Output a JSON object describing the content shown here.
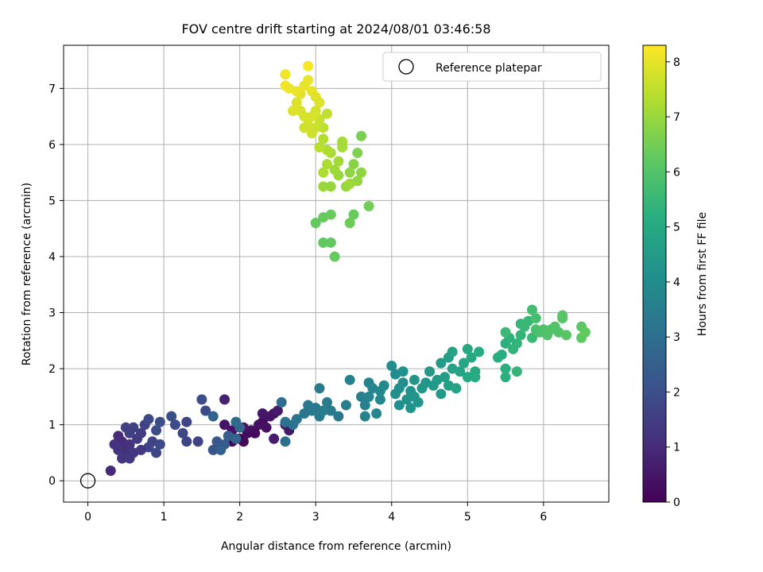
{
  "chart_data": {
    "type": "scatter",
    "title": "FOV centre drift starting at 2024/08/01 03:46:58",
    "xlabel": "Angular distance from reference (arcmin)",
    "ylabel": "Rotation from reference (arcmin)",
    "xlim": [
      -0.32,
      6.86
    ],
    "ylim": [
      -0.38,
      7.77
    ],
    "x_ticks": [
      0,
      1,
      2,
      3,
      4,
      5,
      6
    ],
    "y_ticks": [
      0,
      1,
      2,
      3,
      4,
      5,
      6,
      7
    ],
    "grid": true,
    "legend": {
      "placement": "top-right",
      "label": "Reference platepar"
    },
    "reference_point": {
      "x": 0,
      "y": 0
    },
    "colorbar": {
      "label": "Hours from first FF file",
      "colormap": "viridis",
      "range": [
        0,
        8.3
      ],
      "ticks": [
        0,
        1,
        2,
        3,
        4,
        5,
        6,
        7,
        8
      ]
    },
    "series": [
      {
        "note_hours": "0-1",
        "points": [
          [
            1.9,
            0.7
          ],
          [
            1.85,
            0.8
          ],
          [
            2.0,
            0.75
          ],
          [
            2.05,
            0.7
          ],
          [
            2.1,
            0.85
          ],
          [
            2.15,
            0.9
          ],
          [
            1.9,
            0.9
          ],
          [
            2.05,
            0.95
          ],
          [
            2.3,
            1.05
          ],
          [
            2.35,
            0.95
          ],
          [
            2.4,
            1.15
          ],
          [
            2.45,
            1.2
          ],
          [
            2.3,
            1.2
          ],
          [
            2.5,
            1.25
          ],
          [
            2.6,
            1.0
          ],
          [
            2.65,
            0.9
          ],
          [
            2.45,
            0.75
          ],
          [
            2.2,
            0.85
          ],
          [
            1.8,
            1.0
          ],
          [
            2.25,
            1.0
          ],
          [
            1.8,
            1.45
          ]
        ],
        "hours": [
          0.1,
          0.15,
          0.2,
          0.2,
          0.3,
          0.35,
          0.4,
          0.45,
          0.3,
          0.4,
          0.5,
          0.45,
          0.55,
          0.6,
          0.7,
          0.6,
          0.65,
          0.25,
          0.5,
          0.4,
          0.8
        ]
      },
      {
        "note_hours": "1-2",
        "points": [
          [
            0.3,
            0.18
          ],
          [
            0.4,
            0.8
          ],
          [
            0.45,
            0.7
          ],
          [
            0.5,
            0.55
          ],
          [
            0.55,
            0.65
          ],
          [
            0.35,
            0.65
          ],
          [
            0.45,
            0.4
          ],
          [
            0.55,
            0.4
          ],
          [
            0.6,
            0.5
          ],
          [
            0.65,
            0.75
          ],
          [
            0.7,
            0.85
          ],
          [
            0.5,
            0.95
          ],
          [
            0.6,
            0.95
          ],
          [
            0.75,
            1.0
          ],
          [
            0.85,
            0.7
          ],
          [
            0.8,
            0.6
          ],
          [
            0.9,
            0.5
          ],
          [
            0.95,
            0.65
          ],
          [
            0.9,
            0.9
          ],
          [
            0.95,
            1.05
          ],
          [
            1.1,
            1.15
          ],
          [
            1.15,
            1.0
          ],
          [
            1.25,
            0.85
          ],
          [
            1.3,
            1.05
          ],
          [
            1.3,
            0.7
          ],
          [
            1.45,
            0.7
          ],
          [
            1.55,
            1.25
          ],
          [
            1.5,
            1.45
          ],
          [
            0.4,
            0.55
          ],
          [
            0.55,
            0.85
          ],
          [
            0.7,
            0.55
          ],
          [
            0.8,
            1.1
          ]
        ],
        "hours": [
          1.0,
          1.05,
          1.1,
          1.15,
          1.2,
          1.25,
          1.3,
          1.35,
          1.4,
          1.45,
          1.5,
          1.55,
          1.6,
          1.65,
          1.7,
          1.75,
          1.8,
          1.85,
          1.9,
          1.95,
          2.0,
          1.9,
          1.8,
          1.75,
          1.7,
          1.65,
          1.9,
          1.95,
          1.3,
          1.6,
          1.4,
          1.85
        ]
      },
      {
        "note_hours": "2-3.5",
        "points": [
          [
            1.65,
            0.55
          ],
          [
            1.7,
            0.7
          ],
          [
            1.8,
            0.65
          ],
          [
            1.85,
            0.8
          ],
          [
            1.75,
            0.55
          ],
          [
            1.95,
            0.75
          ],
          [
            2.0,
            0.95
          ],
          [
            1.95,
            1.05
          ],
          [
            1.65,
            1.15
          ],
          [
            2.55,
            1.4
          ],
          [
            2.6,
            0.7
          ],
          [
            2.6,
            1.05
          ],
          [
            2.7,
            1.0
          ],
          [
            2.75,
            1.1
          ],
          [
            2.85,
            1.2
          ],
          [
            2.9,
            1.35
          ],
          [
            2.95,
            1.25
          ],
          [
            3.0,
            1.3
          ],
          [
            3.05,
            1.15
          ],
          [
            3.1,
            1.25
          ],
          [
            3.15,
            1.4
          ],
          [
            3.2,
            1.25
          ],
          [
            3.3,
            1.15
          ],
          [
            3.4,
            1.35
          ],
          [
            3.05,
            1.65
          ],
          [
            3.45,
            1.8
          ],
          [
            3.6,
            1.5
          ],
          [
            3.65,
            1.35
          ],
          [
            3.65,
            1.15
          ]
        ],
        "hours": [
          2.2,
          2.3,
          2.4,
          2.5,
          2.6,
          2.7,
          2.8,
          2.9,
          2.7,
          3.0,
          3.05,
          3.1,
          3.15,
          3.2,
          3.25,
          3.3,
          3.35,
          3.4,
          3.45,
          3.5,
          3.45,
          3.4,
          3.35,
          3.5,
          3.4,
          3.6,
          3.55,
          3.6,
          3.65
        ]
      },
      {
        "note_hours": "3.5-4.5",
        "points": [
          [
            3.7,
            1.75
          ],
          [
            3.7,
            1.5
          ],
          [
            3.75,
            1.65
          ],
          [
            3.8,
            1.2
          ],
          [
            3.85,
            1.45
          ],
          [
            3.85,
            1.6
          ],
          [
            3.9,
            1.7
          ],
          [
            4.0,
            2.05
          ],
          [
            4.05,
            1.9
          ],
          [
            4.05,
            1.55
          ],
          [
            4.1,
            1.65
          ],
          [
            4.1,
            1.35
          ],
          [
            4.15,
            1.75
          ],
          [
            4.15,
            1.95
          ],
          [
            4.2,
            1.45
          ],
          [
            4.25,
            1.6
          ],
          [
            4.25,
            1.3
          ],
          [
            4.3,
            1.8
          ],
          [
            4.3,
            1.5
          ],
          [
            4.35,
            1.4
          ],
          [
            4.4,
            1.65
          ],
          [
            4.45,
            1.75
          ],
          [
            4.5,
            1.95
          ],
          [
            4.55,
            1.7
          ],
          [
            4.6,
            1.8
          ],
          [
            4.65,
            1.55
          ],
          [
            4.65,
            2.1
          ]
        ],
        "hours": [
          3.7,
          3.75,
          3.8,
          3.8,
          3.85,
          3.9,
          3.95,
          4.0,
          4.05,
          4.1,
          4.1,
          4.15,
          4.15,
          4.2,
          4.25,
          4.25,
          4.3,
          4.3,
          4.35,
          4.35,
          4.4,
          4.4,
          4.45,
          4.45,
          4.5,
          4.5,
          4.55
        ]
      },
      {
        "note_hours": "4.5-5.8",
        "points": [
          [
            4.7,
            1.85
          ],
          [
            4.75,
            2.2
          ],
          [
            4.75,
            1.7
          ],
          [
            4.8,
            2.0
          ],
          [
            4.8,
            2.3
          ],
          [
            4.85,
            1.65
          ],
          [
            4.9,
            1.95
          ],
          [
            4.95,
            2.1
          ],
          [
            5.0,
            1.85
          ],
          [
            5.0,
            2.35
          ],
          [
            5.05,
            2.2
          ],
          [
            5.1,
            1.95
          ],
          [
            5.15,
            2.3
          ],
          [
            5.1,
            1.85
          ],
          [
            5.45,
            2.25
          ],
          [
            5.5,
            2.0
          ],
          [
            5.5,
            1.85
          ],
          [
            5.5,
            2.45
          ],
          [
            5.55,
            2.55
          ],
          [
            5.6,
            2.35
          ],
          [
            5.65,
            2.45
          ],
          [
            5.65,
            1.95
          ],
          [
            5.7,
            2.6
          ],
          [
            5.7,
            2.8
          ],
          [
            5.75,
            2.75
          ],
          [
            5.8,
            2.85
          ],
          [
            5.85,
            2.55
          ],
          [
            5.5,
            2.65
          ],
          [
            5.4,
            2.2
          ]
        ],
        "hours": [
          4.6,
          4.65,
          4.7,
          4.75,
          4.8,
          4.85,
          4.9,
          4.95,
          5.0,
          5.0,
          5.05,
          5.05,
          5.1,
          5.1,
          5.2,
          5.25,
          5.3,
          5.3,
          5.35,
          5.4,
          5.4,
          5.45,
          5.45,
          5.5,
          5.55,
          5.55,
          5.6,
          5.6,
          5.2
        ]
      },
      {
        "note_hours": "5.8-6.5",
        "points": [
          [
            5.85,
            3.05
          ],
          [
            5.9,
            2.9
          ],
          [
            5.9,
            2.7
          ],
          [
            5.95,
            2.65
          ],
          [
            6.0,
            2.7
          ],
          [
            6.05,
            2.6
          ],
          [
            6.1,
            2.7
          ],
          [
            6.15,
            2.75
          ],
          [
            6.2,
            2.65
          ],
          [
            6.25,
            2.9
          ],
          [
            6.25,
            2.95
          ],
          [
            6.3,
            2.6
          ],
          [
            6.5,
            2.75
          ],
          [
            6.5,
            2.55
          ],
          [
            6.55,
            2.65
          ],
          [
            3.1,
            4.25
          ],
          [
            3.2,
            4.25
          ],
          [
            3.25,
            4.0
          ],
          [
            3.0,
            4.6
          ],
          [
            3.1,
            4.7
          ],
          [
            3.2,
            4.75
          ],
          [
            3.45,
            4.6
          ],
          [
            3.5,
            4.75
          ],
          [
            3.7,
            4.9
          ]
        ],
        "hours": [
          5.75,
          5.8,
          5.85,
          5.9,
          5.95,
          6.0,
          6.0,
          6.05,
          6.05,
          6.1,
          6.1,
          6.15,
          6.2,
          6.25,
          6.3,
          6.25,
          6.3,
          6.35,
          6.3,
          6.35,
          6.4,
          6.45,
          6.4,
          6.5
        ]
      },
      {
        "note_hours": "6.5-8.3",
        "points": [
          [
            3.6,
            6.15
          ],
          [
            3.55,
            5.85
          ],
          [
            3.5,
            5.65
          ],
          [
            3.45,
            5.5
          ],
          [
            3.55,
            5.35
          ],
          [
            3.4,
            5.25
          ],
          [
            3.3,
            5.45
          ],
          [
            3.25,
            5.55
          ],
          [
            3.3,
            5.7
          ],
          [
            3.35,
            5.95
          ],
          [
            3.2,
            5.85
          ],
          [
            3.15,
            5.65
          ],
          [
            3.1,
            5.5
          ],
          [
            3.15,
            5.9
          ],
          [
            3.1,
            6.1
          ],
          [
            3.05,
            5.95
          ],
          [
            3.1,
            5.25
          ],
          [
            3.35,
            6.05
          ],
          [
            3.45,
            5.3
          ],
          [
            3.6,
            5.5
          ],
          [
            3.2,
            5.25
          ],
          [
            3.1,
            6.3
          ],
          [
            3.15,
            6.55
          ],
          [
            3.05,
            6.45
          ],
          [
            3.0,
            6.3
          ],
          [
            2.95,
            6.2
          ],
          [
            2.9,
            6.35
          ],
          [
            2.85,
            6.5
          ],
          [
            2.8,
            6.6
          ],
          [
            2.75,
            6.75
          ],
          [
            2.7,
            6.6
          ],
          [
            2.8,
            6.9
          ],
          [
            2.85,
            7.05
          ],
          [
            2.9,
            7.15
          ],
          [
            2.95,
            6.95
          ],
          [
            3.0,
            6.85
          ],
          [
            3.05,
            6.75
          ],
          [
            2.6,
            7.25
          ],
          [
            2.6,
            7.05
          ],
          [
            2.65,
            7.0
          ],
          [
            2.9,
            7.4
          ],
          [
            2.75,
            6.95
          ],
          [
            2.85,
            6.3
          ],
          [
            3.0,
            6.6
          ],
          [
            2.95,
            6.5
          ]
        ],
        "hours": [
          6.6,
          6.7,
          6.8,
          6.9,
          6.95,
          7.0,
          7.05,
          7.1,
          7.15,
          7.2,
          7.25,
          7.3,
          7.3,
          7.35,
          7.4,
          7.45,
          7.05,
          7.2,
          7.1,
          6.9,
          7.0,
          7.5,
          7.55,
          7.6,
          7.65,
          7.7,
          7.75,
          7.8,
          7.85,
          7.9,
          7.9,
          7.95,
          8.0,
          8.05,
          8.0,
          7.95,
          7.9,
          8.1,
          8.15,
          8.1,
          8.2,
          8.05,
          7.7,
          7.8,
          7.85
        ]
      }
    ]
  }
}
